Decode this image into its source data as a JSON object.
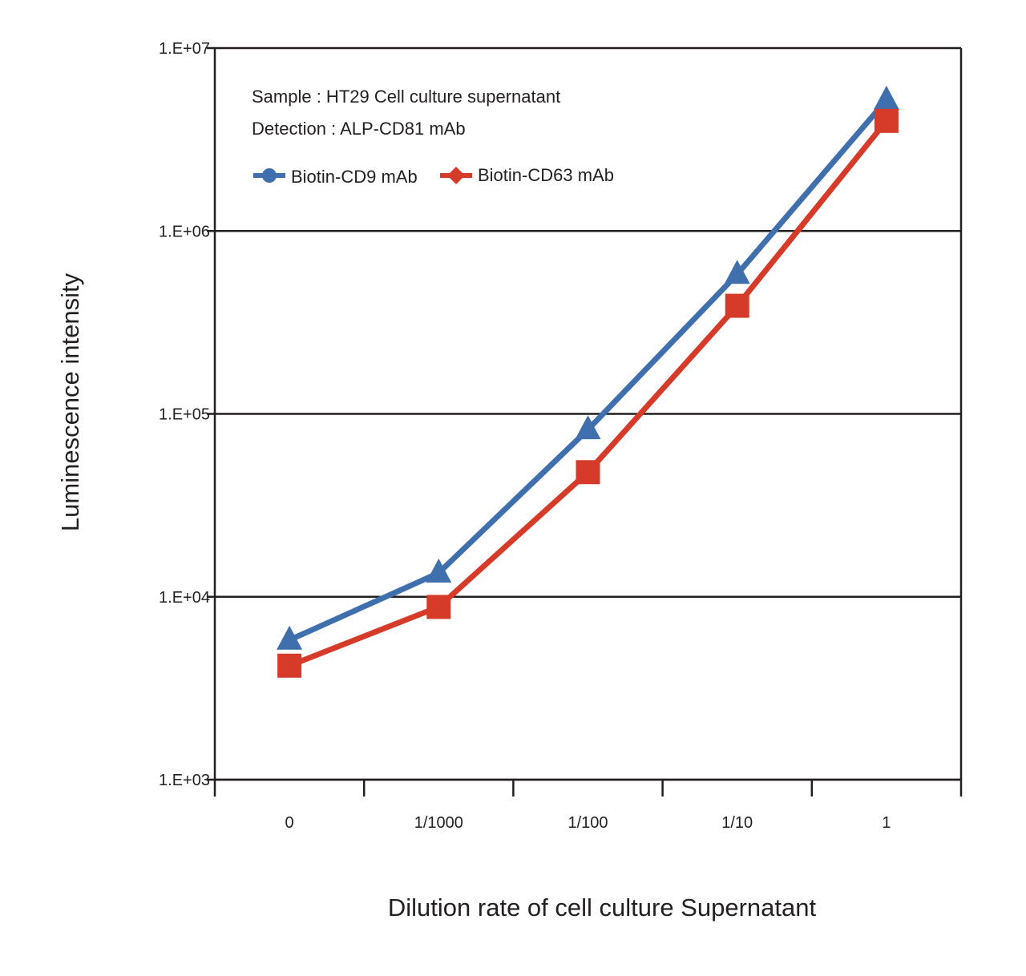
{
  "chart_data": {
    "type": "line",
    "y_scale": "log",
    "categories": [
      "0",
      "1/1000",
      "1/100",
      "1/10",
      "1"
    ],
    "xlabel": "Dilution rate of cell culture Supernatant",
    "ylabel": "Luminescence intensity",
    "ylim": [
      1000,
      10000000
    ],
    "y_ticks": [
      1000,
      10000,
      100000,
      1000000,
      10000000
    ],
    "y_tick_labels": [
      "1.E+03",
      "1.E+04",
      "1.E+05",
      "1.E+06",
      "1.E+07"
    ],
    "grid": "horizontal",
    "annotations": [
      "Sample : HT29 Cell culture supernatant",
      "Detection : ALP-CD81 mAb"
    ],
    "legend_position": "top-left",
    "series": [
      {
        "name": "Biotin-CD9 mAb",
        "color": "#3f6fad",
        "marker": "triangle",
        "legend_marker": "circle",
        "values": [
          5800,
          13500,
          82000,
          580000,
          5200000
        ]
      },
      {
        "name": "Biotin-CD63 mAb",
        "color": "#d63a28",
        "marker": "square",
        "legend_marker": "diamond",
        "values": [
          4200,
          8800,
          48000,
          390000,
          4000000
        ]
      }
    ]
  }
}
